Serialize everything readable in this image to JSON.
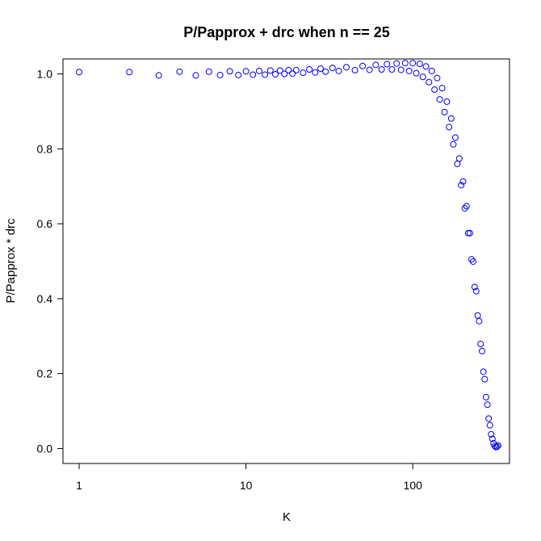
{
  "chart_data": {
    "type": "scatter",
    "title": "P/Papprox + drc when n == 25",
    "xlabel": "K",
    "ylabel": "P/Papprox * drc",
    "x_scale": "log",
    "xlim": [
      0.8,
      380
    ],
    "ylim": [
      -0.04,
      1.04
    ],
    "x_ticks": [
      1,
      10,
      100
    ],
    "x_tick_labels": [
      "1",
      "10",
      "100"
    ],
    "y_ticks": [
      0.0,
      0.2,
      0.4,
      0.6,
      0.8,
      1.0
    ],
    "y_tick_labels": [
      "0.0",
      "0.2",
      "0.4",
      "0.6",
      "0.8",
      "1.0"
    ],
    "grid": false,
    "legend": "none",
    "marker": "open-circle",
    "point_color": "#0000ff",
    "series": [
      {
        "x": [
          1,
          2,
          3,
          4,
          5,
          6,
          7,
          8,
          9,
          10,
          11,
          12,
          13,
          14,
          15,
          16,
          17,
          18,
          19,
          20,
          22,
          24,
          26,
          28,
          30,
          33,
          36,
          40,
          45,
          50,
          55,
          60,
          65,
          70,
          75,
          80,
          85,
          90,
          95,
          100,
          105,
          110,
          115,
          120,
          125,
          130,
          135,
          140,
          145,
          150,
          155,
          160,
          165,
          170,
          175,
          180,
          185,
          190,
          195,
          200,
          205,
          210,
          215,
          220,
          225,
          230,
          235,
          240,
          245,
          250,
          255,
          260,
          265,
          270,
          275,
          280,
          285,
          290,
          295,
          300,
          305,
          310,
          315,
          320,
          325
        ],
        "y": [
          1.005,
          1.005,
          0.996,
          1.006,
          0.996,
          1.006,
          0.997,
          1.007,
          0.997,
          1.007,
          0.998,
          1.008,
          0.998,
          1.009,
          0.999,
          1.009,
          1.0,
          1.01,
          1.001,
          1.01,
          1.003,
          1.012,
          1.004,
          1.014,
          1.006,
          1.016,
          1.008,
          1.018,
          1.01,
          1.021,
          1.011,
          1.024,
          1.012,
          1.026,
          1.012,
          1.028,
          1.011,
          1.029,
          1.008,
          1.029,
          1.002,
          1.027,
          0.992,
          1.02,
          0.978,
          1.008,
          0.958,
          0.989,
          0.932,
          0.962,
          0.898,
          0.926,
          0.858,
          0.881,
          0.812,
          0.83,
          0.76,
          0.774,
          0.703,
          0.713,
          0.641,
          0.647,
          0.575,
          0.575,
          0.505,
          0.499,
          0.431,
          0.42,
          0.355,
          0.34,
          0.279,
          0.26,
          0.205,
          0.185,
          0.137,
          0.117,
          0.08,
          0.062,
          0.038,
          0.026,
          0.014,
          0.007,
          0.004,
          0.005,
          0.008
        ]
      }
    ]
  }
}
